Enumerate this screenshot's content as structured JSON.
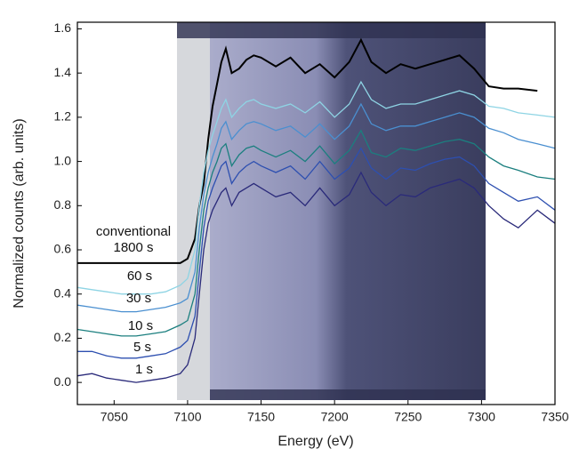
{
  "chart_data": {
    "type": "line",
    "xlabel": "Energy (eV)",
    "ylabel": "Normalized counts (arb. units)",
    "xlim": [
      7025,
      7350
    ],
    "ylim": [
      -0.1,
      1.63
    ],
    "xticks": [
      7050,
      7100,
      7150,
      7200,
      7250,
      7300,
      7350
    ],
    "yticks": [
      {
        "value": 0,
        "label": "0.0"
      },
      0.2,
      0.4,
      0.6,
      0.8,
      {
        "value": 1,
        "label": "1.0"
      },
      1.2,
      1.4,
      1.6
    ],
    "x": [
      7025,
      7035,
      7045,
      7055,
      7065,
      7075,
      7085,
      7095,
      7100,
      7105,
      7108,
      7111,
      7114,
      7117,
      7120,
      7123,
      7126,
      7130,
      7135,
      7140,
      7145,
      7150,
      7160,
      7170,
      7180,
      7190,
      7200,
      7210,
      7218,
      7225,
      7235,
      7245,
      7255,
      7265,
      7275,
      7285,
      7295,
      7305,
      7315,
      7325,
      7338,
      7350
    ],
    "series": [
      {
        "name": "conventional\n1800 s",
        "color": "#000000",
        "values": [
          0.54,
          0.54,
          0.54,
          0.54,
          0.54,
          0.54,
          0.54,
          0.54,
          0.56,
          0.65,
          0.8,
          0.9,
          1.1,
          1.25,
          1.35,
          1.45,
          1.51,
          1.4,
          1.42,
          1.46,
          1.48,
          1.47,
          1.43,
          1.47,
          1.4,
          1.44,
          1.38,
          1.45,
          1.55,
          1.45,
          1.4,
          1.44,
          1.42,
          1.44,
          1.46,
          1.48,
          1.42,
          1.34,
          1.33,
          1.33,
          1.32,
          null
        ]
      },
      {
        "name": "60 s",
        "color": "#8ed4e4",
        "values": [
          0.43,
          0.42,
          0.41,
          0.4,
          0.4,
          0.4,
          0.41,
          0.44,
          0.47,
          0.6,
          0.8,
          0.95,
          1.05,
          1.12,
          1.18,
          1.24,
          1.28,
          1.2,
          1.24,
          1.27,
          1.28,
          1.26,
          1.24,
          1.26,
          1.22,
          1.27,
          1.2,
          1.26,
          1.36,
          1.28,
          1.24,
          1.26,
          1.26,
          1.28,
          1.3,
          1.32,
          1.3,
          1.25,
          1.24,
          1.22,
          1.21,
          1.2
        ]
      },
      {
        "name": "30 s",
        "color": "#4a8fd0",
        "values": [
          0.35,
          0.34,
          0.33,
          0.32,
          0.32,
          0.33,
          0.34,
          0.36,
          0.38,
          0.5,
          0.7,
          0.85,
          0.95,
          1.02,
          1.08,
          1.15,
          1.18,
          1.1,
          1.14,
          1.17,
          1.18,
          1.17,
          1.14,
          1.16,
          1.11,
          1.17,
          1.1,
          1.16,
          1.26,
          1.17,
          1.14,
          1.16,
          1.16,
          1.18,
          1.2,
          1.22,
          1.2,
          1.15,
          1.13,
          1.1,
          1.08,
          1.06
        ]
      },
      {
        "name": "10 s",
        "color": "#1b7f7f",
        "values": [
          0.24,
          0.23,
          0.22,
          0.21,
          0.21,
          0.22,
          0.23,
          0.26,
          0.28,
          0.4,
          0.6,
          0.78,
          0.88,
          0.95,
          1.0,
          1.06,
          1.08,
          0.98,
          1.03,
          1.06,
          1.07,
          1.05,
          1.02,
          1.05,
          1.0,
          1.07,
          0.99,
          1.05,
          1.14,
          1.04,
          1.02,
          1.06,
          1.05,
          1.07,
          1.09,
          1.1,
          1.08,
          1.02,
          0.98,
          0.96,
          0.93,
          0.92
        ]
      },
      {
        "name": "5 s",
        "color": "#2d4fb0",
        "values": [
          0.14,
          0.14,
          0.12,
          0.11,
          0.11,
          0.12,
          0.13,
          0.16,
          0.19,
          0.3,
          0.5,
          0.7,
          0.82,
          0.88,
          0.93,
          0.98,
          1.0,
          0.9,
          0.95,
          0.98,
          1.0,
          0.98,
          0.95,
          0.98,
          0.92,
          1.0,
          0.92,
          0.97,
          1.06,
          0.97,
          0.92,
          0.97,
          0.96,
          0.99,
          1.01,
          1.02,
          0.98,
          0.9,
          0.86,
          0.82,
          0.84,
          0.78
        ]
      },
      {
        "name": "1 s",
        "color": "#2a2a7a",
        "values": [
          0.03,
          0.04,
          0.02,
          0.01,
          0.0,
          0.01,
          0.02,
          0.04,
          0.08,
          0.2,
          0.4,
          0.6,
          0.72,
          0.78,
          0.82,
          0.86,
          0.88,
          0.8,
          0.86,
          0.88,
          0.9,
          0.88,
          0.84,
          0.86,
          0.8,
          0.88,
          0.8,
          0.85,
          0.95,
          0.86,
          0.8,
          0.85,
          0.84,
          0.88,
          0.9,
          0.92,
          0.88,
          0.8,
          0.74,
          0.7,
          0.78,
          0.72
        ]
      }
    ]
  }
}
